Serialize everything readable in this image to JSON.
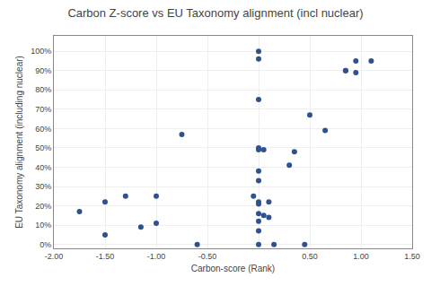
{
  "chart_data": {
    "type": "scatter",
    "title": "Carbon Z-score vs EU Taxonomy alignment (incl nuclear)",
    "xlabel": "Carbon-score (Rank)",
    "ylabel": "EU Taxonomy alignment (including nuclear)",
    "x": [
      -1.75,
      -1.5,
      -1.5,
      -1.3,
      -1.15,
      -1.0,
      -1.0,
      -0.75,
      -0.6,
      -0.05,
      0.0,
      0.0,
      0.0,
      0.0,
      0.0,
      0.0,
      0.0,
      0.0,
      0.0,
      0.0,
      0.0,
      0.0,
      0.0,
      0.05,
      0.05,
      0.1,
      0.1,
      0.15,
      0.3,
      0.35,
      0.45,
      0.5,
      0.65,
      0.85,
      0.85,
      0.95,
      0.95,
      1.1
    ],
    "values": [
      0.17,
      0.05,
      0.22,
      0.25,
      0.09,
      0.11,
      0.25,
      0.57,
      0.0,
      0.25,
      1.0,
      0.96,
      0.75,
      0.5,
      0.49,
      0.38,
      0.33,
      0.22,
      0.21,
      0.16,
      0.12,
      0.07,
      0.0,
      0.15,
      0.49,
      0.22,
      0.14,
      0.0,
      0.41,
      0.48,
      0.0,
      0.67,
      0.59,
      0.9,
      0.9,
      0.89,
      0.95,
      0.95
    ],
    "color": "#2F528F",
    "xlim": [
      -2.0,
      1.5
    ],
    "ylim": [
      -0.02,
      1.08
    ],
    "xticks": [
      {
        "value": -2.0,
        "label": "-2.00"
      },
      {
        "value": -1.5,
        "label": "-1.50"
      },
      {
        "value": -1.0,
        "label": "-1.00"
      },
      {
        "value": -0.5,
        "label": "-0.50"
      },
      {
        "value": 0.0,
        "label": null
      },
      {
        "value": 0.5,
        "label": "0.50"
      },
      {
        "value": 1.0,
        "label": "1.00"
      },
      {
        "value": 1.5,
        "label": "1.50"
      }
    ],
    "yticks": [
      {
        "value": 0.0,
        "label": "0%"
      },
      {
        "value": 0.1,
        "label": "10%"
      },
      {
        "value": 0.2,
        "label": "20%"
      },
      {
        "value": 0.3,
        "label": "30%"
      },
      {
        "value": 0.4,
        "label": "40%"
      },
      {
        "value": 0.5,
        "label": "50%"
      },
      {
        "value": 0.6,
        "label": "60%"
      },
      {
        "value": 0.7,
        "label": "70%"
      },
      {
        "value": 0.8,
        "label": "80%"
      },
      {
        "value": 0.9,
        "label": "90%"
      },
      {
        "value": 1.0,
        "label": "100%"
      }
    ],
    "grid": true
  }
}
